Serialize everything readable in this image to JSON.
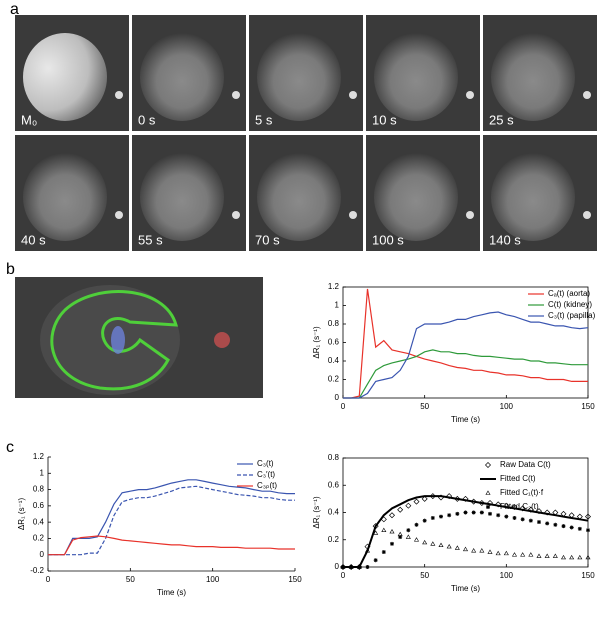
{
  "panel_a": {
    "label": "a",
    "tiles": [
      "M₀",
      "0 s",
      "5 s",
      "10 s",
      "25 s",
      "40 s",
      "55 s",
      "70 s",
      "100 s",
      "140 s"
    ]
  },
  "panel_b": {
    "label": "b"
  },
  "panel_c": {
    "label": "c"
  },
  "chart_data": [
    {
      "type": "line",
      "xlabel": "Time (s)",
      "ylabel": "ΔR₁ (s⁻¹)",
      "legend": "upper right",
      "x": [
        0,
        5,
        10,
        15,
        20,
        25,
        30,
        35,
        40,
        45,
        50,
        55,
        60,
        65,
        70,
        75,
        80,
        85,
        90,
        95,
        100,
        105,
        110,
        115,
        120,
        125,
        130,
        135,
        140,
        145,
        150
      ],
      "xlim": [
        0,
        150
      ],
      "xticks": [
        0,
        50,
        100,
        150
      ],
      "ylim": [
        0,
        1.2
      ],
      "yticks": [
        0,
        0.2,
        0.4,
        0.6,
        0.8,
        1,
        1.2
      ],
      "series": [
        {
          "name": "Cₐ(t) (aorta)",
          "color": "#e8322a",
          "line_style": "solid",
          "values": [
            0,
            0,
            0.02,
            1.18,
            0.55,
            0.62,
            0.52,
            0.5,
            0.48,
            0.45,
            0.42,
            0.4,
            0.38,
            0.35,
            0.33,
            0.32,
            0.3,
            0.3,
            0.28,
            0.27,
            0.25,
            0.25,
            0.24,
            0.22,
            0.22,
            0.2,
            0.2,
            0.2,
            0.18,
            0.18,
            0.18
          ]
        },
        {
          "name": "C(t) (kidney)",
          "color": "#2e9a3a",
          "line_style": "solid",
          "values": [
            0,
            0,
            0,
            0.15,
            0.3,
            0.35,
            0.38,
            0.4,
            0.42,
            0.45,
            0.5,
            0.52,
            0.5,
            0.5,
            0.48,
            0.48,
            0.46,
            0.45,
            0.45,
            0.44,
            0.43,
            0.42,
            0.42,
            0.4,
            0.4,
            0.38,
            0.38,
            0.37,
            0.36,
            0.36,
            0.36
          ]
        },
        {
          "name": "C₃(t) (papilla)",
          "color": "#3a55b0",
          "line_style": "solid",
          "values": [
            0,
            0,
            0,
            0.05,
            0.18,
            0.2,
            0.22,
            0.3,
            0.45,
            0.75,
            0.8,
            0.8,
            0.8,
            0.82,
            0.85,
            0.85,
            0.88,
            0.9,
            0.92,
            0.93,
            0.9,
            0.88,
            0.85,
            0.82,
            0.82,
            0.8,
            0.78,
            0.78,
            0.76,
            0.75,
            0.76
          ]
        }
      ]
    },
    {
      "type": "line",
      "xlabel": "Time (s)",
      "ylabel": "ΔR₁ (s⁻¹)",
      "legend": "upper right",
      "x": [
        0,
        5,
        10,
        15,
        20,
        25,
        30,
        35,
        40,
        45,
        50,
        55,
        60,
        65,
        70,
        75,
        80,
        85,
        90,
        95,
        100,
        105,
        110,
        115,
        120,
        125,
        130,
        135,
        140,
        145,
        150
      ],
      "xlim": [
        0,
        150
      ],
      "xticks": [
        0,
        50,
        100,
        150
      ],
      "ylim": [
        -0.2,
        1.2
      ],
      "yticks": [
        -0.2,
        0,
        0.2,
        0.4,
        0.6,
        0.8,
        1,
        1.2
      ],
      "series": [
        {
          "name": "C₃(t)",
          "color": "#3a55b0",
          "line_style": "solid",
          "values": [
            0,
            0,
            0,
            0.2,
            0.2,
            0.2,
            0.22,
            0.4,
            0.62,
            0.76,
            0.78,
            0.8,
            0.8,
            0.82,
            0.85,
            0.88,
            0.9,
            0.92,
            0.92,
            0.9,
            0.88,
            0.86,
            0.84,
            0.83,
            0.82,
            0.8,
            0.78,
            0.78,
            0.76,
            0.75,
            0.75
          ]
        },
        {
          "name": "C₃′(t)",
          "color": "#3a55b0",
          "line_style": "dashed",
          "values": [
            0,
            0,
            0,
            0,
            0,
            0.02,
            0.02,
            0.2,
            0.48,
            0.65,
            0.68,
            0.7,
            0.7,
            0.72,
            0.75,
            0.78,
            0.82,
            0.83,
            0.84,
            0.82,
            0.8,
            0.78,
            0.76,
            0.74,
            0.73,
            0.72,
            0.7,
            0.7,
            0.68,
            0.67,
            0.67
          ]
        },
        {
          "name": "C₃ₚ(t)",
          "color": "#e8322a",
          "line_style": "solid",
          "values": [
            0,
            0,
            0,
            0.18,
            0.21,
            0.22,
            0.23,
            0.22,
            0.2,
            0.18,
            0.17,
            0.16,
            0.15,
            0.14,
            0.13,
            0.12,
            0.12,
            0.11,
            0.1,
            0.1,
            0.1,
            0.09,
            0.09,
            0.09,
            0.08,
            0.08,
            0.08,
            0.08,
            0.07,
            0.07,
            0.07
          ]
        }
      ]
    },
    {
      "type": "line",
      "xlabel": "Time (s)",
      "ylabel": "ΔR₁ (s⁻¹)",
      "legend": "upper right",
      "x": [
        0,
        5,
        10,
        15,
        20,
        25,
        30,
        35,
        40,
        45,
        50,
        55,
        60,
        65,
        70,
        75,
        80,
        85,
        90,
        95,
        100,
        105,
        110,
        115,
        120,
        125,
        130,
        135,
        140,
        145,
        150
      ],
      "xlim": [
        0,
        150
      ],
      "xticks": [
        0,
        50,
        100,
        150
      ],
      "ylim": [
        0,
        0.8
      ],
      "yticks": [
        0,
        0.2,
        0.4,
        0.6,
        0.8
      ],
      "series": [
        {
          "name": "Raw Data C(t)",
          "color": "#000000",
          "marker": "diamond",
          "values": [
            0,
            0,
            0,
            0.15,
            0.3,
            0.35,
            0.38,
            0.42,
            0.45,
            0.48,
            0.5,
            0.52,
            0.51,
            0.52,
            0.5,
            0.5,
            0.48,
            0.47,
            0.47,
            0.46,
            0.45,
            0.44,
            0.43,
            0.42,
            0.41,
            0.4,
            0.4,
            0.39,
            0.38,
            0.37,
            0.37
          ]
        },
        {
          "name": "Fitted C(t)",
          "color": "#000000",
          "line_style": "solid",
          "values": [
            0,
            0,
            0,
            0.12,
            0.3,
            0.38,
            0.43,
            0.46,
            0.49,
            0.51,
            0.52,
            0.52,
            0.52,
            0.51,
            0.5,
            0.49,
            0.48,
            0.47,
            0.46,
            0.45,
            0.44,
            0.43,
            0.42,
            0.41,
            0.4,
            0.39,
            0.38,
            0.37,
            0.36,
            0.35,
            0.34
          ]
        },
        {
          "name": "Fitted C₁(t)·f",
          "color": "#000000",
          "marker": "triangle",
          "values": [
            0,
            0,
            0,
            0.12,
            0.25,
            0.27,
            0.26,
            0.24,
            0.22,
            0.2,
            0.18,
            0.17,
            0.16,
            0.15,
            0.14,
            0.13,
            0.12,
            0.12,
            0.11,
            0.1,
            0.1,
            0.09,
            0.09,
            0.09,
            0.08,
            0.08,
            0.08,
            0.07,
            0.07,
            0.07,
            0.07
          ]
        },
        {
          "name": "Fitted C₂(t)",
          "color": "#000000",
          "marker": "star",
          "values": [
            0,
            0,
            0,
            0,
            0.05,
            0.11,
            0.17,
            0.22,
            0.27,
            0.31,
            0.34,
            0.36,
            0.37,
            0.38,
            0.39,
            0.4,
            0.4,
            0.4,
            0.39,
            0.38,
            0.37,
            0.36,
            0.35,
            0.34,
            0.33,
            0.32,
            0.31,
            0.3,
            0.29,
            0.28,
            0.27
          ]
        }
      ]
    }
  ]
}
